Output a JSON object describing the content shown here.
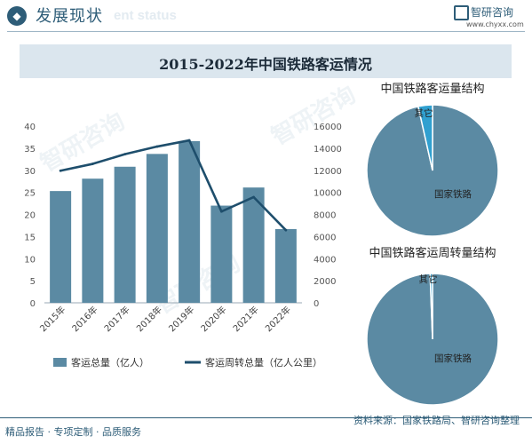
{
  "header": {
    "title": "发展现状",
    "ghost_text": "ent status",
    "logo_text": "智研咨询",
    "logo_url": "www.chyxx.com"
  },
  "watermark": "智研咨询",
  "footer": {
    "left": "精品报告 · 专项定制 · 品质服务",
    "source": "资料来源：国家铁路局、智研咨询整理"
  },
  "colors": {
    "bar": "#5b8aa3",
    "line": "#1e4e6c",
    "pie_main": "#5b8aa3",
    "pie_other": "#30a0d0",
    "accent": "#2e5d78"
  },
  "chart_data": [
    {
      "type": "bar",
      "title": "2015-2022年中国铁路客运情况",
      "categories": [
        "2015年",
        "2016年",
        "2017年",
        "2018年",
        "2019年",
        "2020年",
        "2021年",
        "2022年"
      ],
      "ylim_left": [
        0,
        40
      ],
      "yticks_left": [
        0,
        5,
        10,
        15,
        20,
        25,
        30,
        35,
        40
      ],
      "ylim_right": [
        0,
        16000
      ],
      "yticks_right": [
        0,
        2000,
        4000,
        6000,
        8000,
        10000,
        12000,
        14000,
        16000
      ],
      "series": [
        {
          "name": "客运总量（亿人）",
          "type": "bar",
          "axis": "left",
          "values": [
            25.3,
            28.1,
            30.8,
            33.7,
            36.6,
            22.0,
            26.1,
            16.7
          ]
        },
        {
          "name": "客运周转总量（亿人公里）",
          "type": "line",
          "axis": "right",
          "values": [
            11960,
            12579,
            13457,
            14147,
            14707,
            8266,
            9568,
            6578
          ]
        }
      ],
      "legend": "bottom",
      "grid": false
    },
    {
      "type": "pie",
      "title": "中国铁路客运量结构",
      "labels": [
        "国家铁路",
        "其它"
      ],
      "values": [
        96.5,
        3.5
      ]
    },
    {
      "type": "pie",
      "title": "中国铁路客运周转量结构",
      "labels": [
        "国家铁路",
        "其它"
      ],
      "values": [
        99.4,
        0.6
      ]
    }
  ]
}
